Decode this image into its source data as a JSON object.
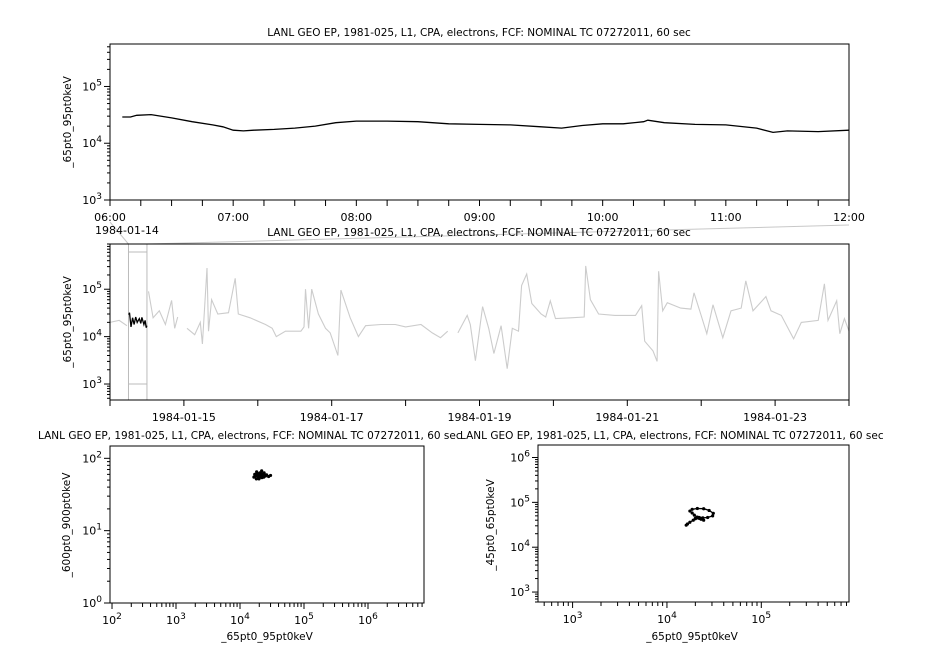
{
  "chart_data": [
    {
      "type": "line",
      "title": "LANL GEO EP, 1981-025, L1, CPA, electrons, FCF: NOMINAL TC 07272011, 60 sec",
      "ylabel": "_65pt0_95pt0keV",
      "xlabel": "",
      "date": "1984-01-14",
      "xlim": [
        "1984-01-14T06:00",
        "1984-01-14T12:00"
      ],
      "xticks": [
        "06:00",
        "07:00",
        "08:00",
        "09:00",
        "10:00",
        "11:00",
        "12:00"
      ],
      "xminor_minutes": 15,
      "yscale": "log",
      "ylim": [
        1000,
        560000
      ],
      "yticks": [
        1000,
        10000,
        100000
      ],
      "ytick_labels": [
        "10^3",
        "10^4",
        "10^5"
      ],
      "grid": false,
      "series": [
        {
          "color": "#000000",
          "points": [
            [
              "1984-01-14T06:06",
              29000
            ],
            [
              "1984-01-14T06:10",
              29000
            ],
            [
              "1984-01-14T06:13",
              31000
            ],
            [
              "1984-01-14T06:20",
              32000
            ],
            [
              "1984-01-14T06:30",
              28000
            ],
            [
              "1984-01-14T06:40",
              24000
            ],
            [
              "1984-01-14T06:50",
              21000
            ],
            [
              "1984-01-14T06:55",
              19500
            ],
            [
              "1984-01-14T07:00",
              17000
            ],
            [
              "1984-01-14T07:05",
              16500
            ],
            [
              "1984-01-14T07:10",
              17000
            ],
            [
              "1984-01-14T07:20",
              17500
            ],
            [
              "1984-01-14T07:30",
              18500
            ],
            [
              "1984-01-14T07:40",
              20000
            ],
            [
              "1984-01-14T07:50",
              23000
            ],
            [
              "1984-01-14T08:00",
              24500
            ],
            [
              "1984-01-14T08:15",
              24500
            ],
            [
              "1984-01-14T08:30",
              24000
            ],
            [
              "1984-01-14T08:45",
              22000
            ],
            [
              "1984-01-14T09:00",
              21500
            ],
            [
              "1984-01-14T09:15",
              21000
            ],
            [
              "1984-01-14T09:30",
              19500
            ],
            [
              "1984-01-14T09:40",
              18500
            ],
            [
              "1984-01-14T09:50",
              20500
            ],
            [
              "1984-01-14T10:00",
              22000
            ],
            [
              "1984-01-14T10:10",
              22000
            ],
            [
              "1984-01-14T10:20",
              24000
            ],
            [
              "1984-01-14T10:22",
              25500
            ],
            [
              "1984-01-14T10:30",
              23000
            ],
            [
              "1984-01-14T10:45",
              21500
            ],
            [
              "1984-01-14T11:00",
              21000
            ],
            [
              "1984-01-14T11:15",
              18500
            ],
            [
              "1984-01-14T11:23",
              15500
            ],
            [
              "1984-01-14T11:30",
              16500
            ],
            [
              "1984-01-14T11:45",
              16000
            ],
            [
              "1984-01-14T12:00",
              17000
            ]
          ]
        }
      ]
    },
    {
      "type": "line",
      "title": "LANL GEO EP, 1981-025, L1, CPA, electrons, FCF: NOMINAL TC 07272011, 60 sec",
      "ylabel": "_65pt0_95pt0keV",
      "xlabel": "",
      "xlim": [
        "1984-01-14T00:00",
        "1984-01-24T00:00"
      ],
      "xticks": [
        "1984-01-15",
        "1984-01-17",
        "1984-01-19",
        "1984-01-21",
        "1984-01-23"
      ],
      "xminor_days": 1,
      "yscale": "log",
      "ylim": [
        460,
        900000
      ],
      "yticks": [
        1000,
        10000,
        100000
      ],
      "ytick_labels": [
        "10^3",
        "10^4",
        "10^5"
      ],
      "grid": false,
      "highlight_range": [
        "1984-01-14T06:00",
        "1984-01-14T12:00"
      ],
      "series": [
        {
          "color": "#cccccc",
          "points": [
            [
              "1984-01-14T00:00",
              20000
            ],
            [
              "1984-01-14T03:00",
              22000
            ],
            [
              "1984-01-14T05:30",
              17000
            ],
            null,
            [
              "1984-01-14T12:30",
              90000
            ],
            [
              "1984-01-14T14:00",
              25000
            ],
            [
              "1984-01-14T16:00",
              35000
            ],
            [
              "1984-01-14T18:00",
              18000
            ],
            [
              "1984-01-14T20:00",
              58000
            ],
            [
              "1984-01-14T21:00",
              15000
            ],
            [
              "1984-01-14T22:00",
              26000
            ],
            null,
            [
              "1984-01-15T01:00",
              15000
            ],
            [
              "1984-01-15T03:30",
              11000
            ],
            [
              "1984-01-15T05:20",
              20000
            ],
            [
              "1984-01-15T06:00",
              7000
            ],
            [
              "1984-01-15T07:30",
              280000
            ],
            [
              "1984-01-15T08:00",
              13000
            ],
            [
              "1984-01-15T09:00",
              60000
            ],
            [
              "1984-01-15T11:00",
              30000
            ],
            [
              "1984-01-15T14:30",
              32000
            ],
            [
              "1984-01-15T16:40",
              170000
            ],
            [
              "1984-01-15T17:40",
              30000
            ],
            [
              "1984-01-15T21:30",
              25000
            ],
            [
              "1984-01-16T02:30",
              18000
            ],
            [
              "1984-01-16T04:40",
              15000
            ],
            [
              "1984-01-16T06:00",
              10000
            ],
            [
              "1984-01-16T09:00",
              13000
            ],
            [
              "1984-01-16T14:00",
              13000
            ],
            [
              "1984-01-16T15:00",
              16000
            ],
            [
              "1984-01-16T15:30",
              100000
            ],
            [
              "1984-01-16T16:30",
              15000
            ],
            [
              "1984-01-16T17:30",
              100000
            ],
            [
              "1984-01-16T19:40",
              30000
            ],
            [
              "1984-01-16T22:00",
              15000
            ],
            [
              "1984-01-16T23:30",
              12000
            ],
            [
              "1984-01-17T02:00",
              4000
            ],
            [
              "1984-01-17T03:00",
              96000
            ],
            [
              "1984-01-17T06:00",
              25000
            ],
            [
              "1984-01-17T08:40",
              10000
            ],
            [
              "1984-01-17T11:00",
              17000
            ],
            [
              "1984-01-17T16:00",
              18000
            ],
            [
              "1984-01-17T20:40",
              18000
            ],
            [
              "1984-01-18T00:00",
              16000
            ],
            [
              "1984-01-18T05:00",
              18000
            ],
            [
              "1984-01-18T08:40",
              12000
            ],
            [
              "1984-01-18T11:20",
              9500
            ],
            [
              "1984-01-18T13:40",
              13000
            ],
            null,
            [
              "1984-01-18T17:00",
              12000
            ],
            [
              "1984-01-18T20:00",
              28000
            ],
            [
              "1984-01-18T21:00",
              18000
            ],
            [
              "1984-01-18T22:40",
              3100
            ],
            [
              "1984-01-19T01:00",
              43000
            ],
            [
              "1984-01-19T03:00",
              15000
            ],
            [
              "1984-01-19T04:40",
              4400
            ],
            [
              "1984-01-19T07:00",
              17000
            ],
            [
              "1984-01-19T09:00",
              2100
            ],
            [
              "1984-01-19T10:40",
              15000
            ],
            [
              "1984-01-19T12:40",
              13000
            ],
            [
              "1984-01-19T13:40",
              120000
            ],
            [
              "1984-01-19T15:20",
              210000
            ],
            [
              "1984-01-19T17:00",
              50000
            ],
            [
              "1984-01-19T20:00",
              30000
            ],
            [
              "1984-01-19T21:30",
              26000
            ],
            [
              "1984-01-19T23:00",
              57000
            ],
            [
              "1984-01-20T00:40",
              24000
            ],
            [
              "1984-01-20T05:40",
              25000
            ],
            [
              "1984-01-20T10:00",
              26000
            ],
            [
              "1984-01-20T10:30",
              310000
            ],
            [
              "1984-01-20T12:00",
              60000
            ],
            [
              "1984-01-20T14:40",
              30000
            ],
            [
              "1984-01-20T20:00",
              28000
            ],
            [
              "1984-01-21T02:40",
              28000
            ],
            [
              "1984-01-21T04:40",
              45000
            ],
            [
              "1984-01-21T05:40",
              8000
            ],
            [
              "1984-01-21T08:20",
              5000
            ],
            [
              "1984-01-21T09:40",
              3000
            ],
            [
              "1984-01-21T10:10",
              240000
            ],
            [
              "1984-01-21T11:30",
              35000
            ],
            [
              "1984-01-21T13:00",
              52000
            ],
            [
              "1984-01-21T17:20",
              40000
            ],
            [
              "1984-01-21T20:40",
              38000
            ],
            [
              "1984-01-21T21:40",
              84000
            ],
            [
              "1984-01-21T23:50",
              30000
            ],
            [
              "1984-01-22T01:50",
              11500
            ],
            [
              "1984-01-22T03:50",
              47000
            ],
            [
              "1984-01-22T07:00",
              9500
            ],
            [
              "1984-01-22T09:40",
              35000
            ],
            [
              "1984-01-22T13:00",
              40000
            ],
            [
              "1984-01-22T14:30",
              150000
            ],
            [
              "1984-01-22T16:50",
              35000
            ],
            [
              "1984-01-22T21:00",
              70000
            ],
            [
              "1984-01-22T22:40",
              35000
            ],
            [
              "1984-01-23T02:00",
              28000
            ],
            [
              "1984-01-23T06:00",
              9000
            ],
            [
              "1984-01-23T08:30",
              20000
            ],
            [
              "1984-01-23T14:00",
              22000
            ],
            [
              "1984-01-23T16:00",
              130000
            ],
            [
              "1984-01-23T17:10",
              22000
            ],
            [
              "1984-01-23T20:00",
              57000
            ],
            [
              "1984-01-23T21:00",
              11500
            ],
            [
              "1984-01-23T22:30",
              24000
            ],
            [
              "1984-01-24T00:00",
              13000
            ]
          ]
        },
        {
          "color": "#000000",
          "points": [
            [
              "1984-01-14T06:06",
              29000
            ],
            [
              "1984-01-14T06:20",
              32000
            ],
            [
              "1984-01-14T06:50",
              16000
            ],
            [
              "1984-01-14T07:20",
              25000
            ],
            [
              "1984-01-14T07:50",
              18000
            ],
            [
              "1984-01-14T08:20",
              26000
            ],
            [
              "1984-01-14T08:50",
              20000
            ],
            [
              "1984-01-14T09:30",
              24000
            ],
            [
              "1984-01-14T10:00",
              19000
            ],
            [
              "1984-01-14T10:22",
              25500
            ],
            [
              "1984-01-14T11:00",
              18000
            ],
            [
              "1984-01-14T11:23",
              22000
            ],
            [
              "1984-01-14T11:45",
              15500
            ],
            [
              "1984-01-14T12:00",
              17000
            ]
          ]
        }
      ]
    },
    {
      "type": "scatter",
      "title": "LANL GEO EP, 1981-025, L1, CPA, electrons, FCF: NOMINAL TC 07272011, 60 sec",
      "xlabel": "_65pt0_95pt0keV",
      "ylabel": "_600pt0_900pt0keV",
      "xscale": "log",
      "yscale": "log",
      "xlim": [
        93,
        7500000
      ],
      "ylim": [
        1,
        148
      ],
      "xticks": [
        100,
        1000,
        10000,
        100000,
        1000000
      ],
      "xtick_labels": [
        "10^2",
        "10^3",
        "10^4",
        "10^5",
        "10^6"
      ],
      "yticks": [
        1,
        10,
        100
      ],
      "ytick_labels": [
        "10^0",
        "10^1",
        "10^2"
      ],
      "grid": false,
      "series": [
        {
          "color": "#000000",
          "points": [
            [
              16500,
              55
            ],
            [
              17000,
              60
            ],
            [
              17500,
              57
            ],
            [
              18000,
              52
            ],
            [
              18500,
              62
            ],
            [
              19000,
              58
            ],
            [
              19500,
              55
            ],
            [
              20000,
              60
            ],
            [
              20500,
              63
            ],
            [
              21000,
              56
            ],
            [
              21500,
              59
            ],
            [
              22000,
              54
            ],
            [
              22500,
              61
            ],
            [
              23000,
              58
            ],
            [
              23500,
              55
            ],
            [
              24000,
              60
            ],
            [
              25000,
              57
            ],
            [
              26000,
              59
            ],
            [
              28000,
              56
            ],
            [
              30000,
              58
            ],
            [
              18200,
              65
            ],
            [
              21800,
              67
            ],
            [
              19800,
              52
            ],
            [
              23800,
              63
            ]
          ]
        }
      ]
    },
    {
      "type": "scatter",
      "title": "LANL GEO EP, 1981-025, L1, CPA, electrons, FCF: NOMINAL TC 07272011, 60 sec",
      "xlabel": "_65pt0_95pt0keV",
      "ylabel": "_45pt0_65pt0keV",
      "xscale": "log",
      "yscale": "log",
      "xlim": [
        430,
        850000
      ],
      "ylim": [
        600,
        1900000
      ],
      "xticks": [
        1000,
        10000,
        100000
      ],
      "xtick_labels": [
        "10^3",
        "10^4",
        "10^5"
      ],
      "yticks": [
        1000,
        10000,
        100000,
        1000000
      ],
      "ytick_labels": [
        "10^3",
        "10^4",
        "10^5",
        "10^6"
      ],
      "grid": false,
      "series": [
        {
          "color": "#000000",
          "connected": true,
          "points": [
            [
              16000,
              31000
            ],
            [
              16500,
              33000
            ],
            [
              17500,
              36000
            ],
            [
              19000,
              40000
            ],
            [
              20000,
              43000
            ],
            [
              21000,
              45000
            ],
            [
              22000,
              44000
            ],
            [
              23000,
              42000
            ],
            [
              24500,
              40000
            ],
            [
              23000,
              44000
            ],
            [
              21000,
              47000
            ],
            [
              19500,
              52000
            ],
            [
              18500,
              58000
            ],
            [
              17500,
              64000
            ],
            [
              18500,
              70000
            ],
            [
              21000,
              73000
            ],
            [
              24500,
              72000
            ],
            [
              28000,
              66000
            ],
            [
              31000,
              57000
            ],
            [
              30500,
              50000
            ],
            [
              27000,
              46000
            ],
            [
              24000,
              45000
            ],
            [
              22000,
              46000
            ],
            [
              20000,
              44000
            ]
          ]
        }
      ]
    }
  ]
}
